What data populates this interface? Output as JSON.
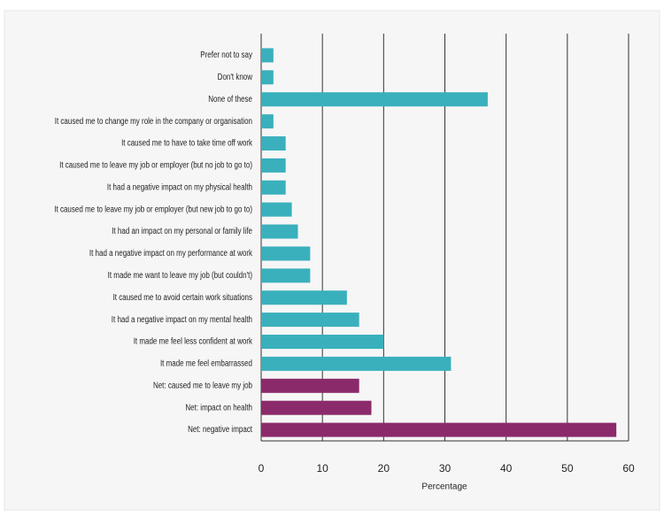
{
  "chart_data": {
    "type": "barh",
    "categories": [
      "Prefer not to say",
      "Don't know",
      "None of these",
      "It caused me to change my role in the company or organisation",
      "It caused me to have to take time off work",
      "It caused me to leave my job or employer (but no job to go to)",
      "It had a negative impact on my physical health",
      "It caused me to leave my job or employer (but new job to go to)",
      "It had an impact on my personal or family life",
      "It had a negative impact on my performance at work",
      "It made me want to leave my job (but couldn't)",
      "It caused me to avoid certain work situations",
      "It had a negative impact on my mental health",
      "It made me feel less confident at work",
      "It made me feel embarrassed",
      "Net: caused me to leave my job",
      "Net: impact on health",
      "Net: negative impact"
    ],
    "values": [
      2,
      2,
      37,
      2,
      4,
      4,
      4,
      5,
      6,
      8,
      8,
      14,
      16,
      20,
      31,
      16,
      18,
      58
    ],
    "colors": [
      "#3ab0bd",
      "#3ab0bd",
      "#3ab0bd",
      "#3ab0bd",
      "#3ab0bd",
      "#3ab0bd",
      "#3ab0bd",
      "#3ab0bd",
      "#3ab0bd",
      "#3ab0bd",
      "#3ab0bd",
      "#3ab0bd",
      "#3ab0bd",
      "#3ab0bd",
      "#3ab0bd",
      "#8b2a6a",
      "#8b2a6a",
      "#8b2a6a"
    ],
    "xlabel": "Percentage",
    "xlim": [
      0,
      60
    ],
    "xticks": [
      0,
      10,
      20,
      30,
      40,
      50,
      60
    ],
    "grid": true
  }
}
